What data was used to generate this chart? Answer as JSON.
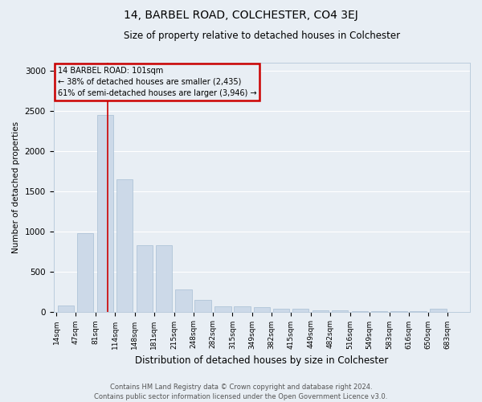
{
  "title": "14, BARBEL ROAD, COLCHESTER, CO4 3EJ",
  "subtitle": "Size of property relative to detached houses in Colchester",
  "xlabel": "Distribution of detached houses by size in Colchester",
  "ylabel": "Number of detached properties",
  "footer_line1": "Contains HM Land Registry data © Crown copyright and database right 2024.",
  "footer_line2": "Contains public sector information licensed under the Open Government Licence v3.0.",
  "annotation_line1": "14 BARBEL ROAD: 101sqm",
  "annotation_line2": "← 38% of detached houses are smaller (2,435)",
  "annotation_line3": "61% of semi-detached houses are larger (3,946) →",
  "red_line_x": 101,
  "bar_bins": [
    14,
    47,
    81,
    114,
    148,
    181,
    215,
    248,
    282,
    315,
    349,
    382,
    415,
    449,
    482,
    516,
    549,
    583,
    616,
    650,
    683
  ],
  "bar_heights": [
    75,
    980,
    2450,
    1650,
    830,
    830,
    275,
    145,
    65,
    65,
    55,
    40,
    35,
    20,
    15,
    10,
    8,
    5,
    5,
    40
  ],
  "bar_color": "#ccd9e8",
  "bar_edge_color": "#a8bfd4",
  "red_line_color": "#cc0000",
  "background_color": "#e8eef4",
  "grid_color": "#ffffff",
  "ylim": [
    0,
    3100
  ],
  "yticks": [
    0,
    500,
    1000,
    1500,
    2000,
    2500,
    3000
  ],
  "figwidth": 6.0,
  "figheight": 5.0,
  "dpi": 100
}
